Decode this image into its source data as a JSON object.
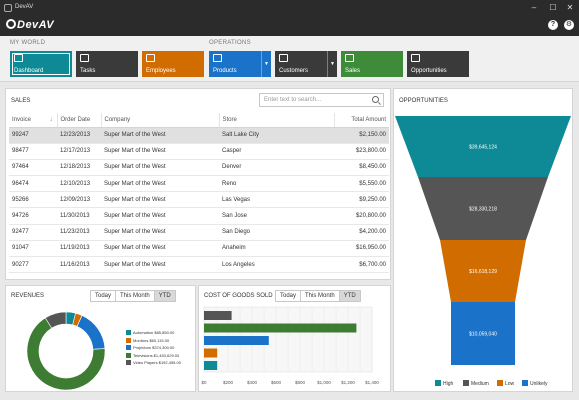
{
  "window": {
    "title": "DevAV",
    "controls": [
      "–",
      "☐",
      "✕"
    ]
  },
  "ribbon": {
    "logo": "DevAV",
    "help": "?",
    "settings": "⚙"
  },
  "nav": {
    "my_world_label": "MY WORLD",
    "operations_label": "OPERATIONS",
    "tiles": [
      {
        "label": "Dashboard",
        "color": "#0e8a96",
        "icon": "dashboard-icon"
      },
      {
        "label": "Tasks",
        "color": "#3a3a3a",
        "icon": "tasks-icon"
      },
      {
        "label": "Employees",
        "color": "#d06c00",
        "icon": "employees-icon"
      },
      {
        "label": "Products",
        "color": "#1a73c9",
        "icon": "products-icon"
      },
      {
        "label": "Customers",
        "color": "#3a3a3a",
        "icon": "customers-icon"
      },
      {
        "label": "Sales",
        "color": "#3e8c3a",
        "icon": "sales-icon"
      },
      {
        "label": "Opportunities",
        "color": "#3a3a3a",
        "icon": "opportunities-icon"
      }
    ]
  },
  "sales": {
    "title": "SALES",
    "search_placeholder": "Enter text to search...",
    "columns": [
      "Invoice",
      "Order Date",
      "Company",
      "Store",
      "Total Amount"
    ],
    "rows": [
      [
        "99247",
        "12/23/2013",
        "Super Mart of the West",
        "Salt Lake City",
        "$2,150.00"
      ],
      [
        "98477",
        "12/17/2013",
        "Super Mart of the West",
        "Casper",
        "$23,800.00"
      ],
      [
        "97464",
        "12/18/2013",
        "Super Mart of the West",
        "Denver",
        "$8,450.00"
      ],
      [
        "96474",
        "12/10/2013",
        "Super Mart of the West",
        "Reno",
        "$5,550.00"
      ],
      [
        "95266",
        "12/09/2013",
        "Super Mart of the West",
        "Las Vegas",
        "$9,250.00"
      ],
      [
        "94726",
        "11/30/2013",
        "Super Mart of the West",
        "San Jose",
        "$20,800.00"
      ],
      [
        "92477",
        "11/23/2013",
        "Super Mart of the West",
        "San Diego",
        "$4,200.00"
      ],
      [
        "91047",
        "11/19/2013",
        "Super Mart of the West",
        "Anaheim",
        "$16,950.00"
      ],
      [
        "90277",
        "11/16/2013",
        "Super Mart of the West",
        "Los Angeles",
        "$6,700.00"
      ]
    ]
  },
  "revenues": {
    "title": "REVENUES",
    "periods": [
      "Today",
      "This Month",
      "YTD"
    ],
    "legend": [
      {
        "label": "Automation $85,850.00",
        "color": "#0e8a96",
        "value": 85850
      },
      {
        "label": "Monitors $60,115.00",
        "color": "#d06c00",
        "value": 60115
      },
      {
        "label": "Projectors $374,300.00",
        "color": "#1a73c9",
        "value": 374300
      },
      {
        "label": "Televisions $1,453,629.00",
        "color": "#3e7c33",
        "value": 1453629
      },
      {
        "label": "Video Players $192,455.00",
        "color": "#555555",
        "value": 192455
      }
    ]
  },
  "cogs": {
    "title": "COST OF GOODS SOLD",
    "periods": [
      "Today",
      "This Month",
      "YTD"
    ],
    "ticks": [
      "$0",
      "$200",
      "$400",
      "$600",
      "$800",
      "$1,000",
      "$1,200",
      "$1,400"
    ],
    "bars": [
      {
        "value": 230,
        "color": "#555555"
      },
      {
        "value": 1270,
        "color": "#3e7c33"
      },
      {
        "value": 540,
        "color": "#1a73c9"
      },
      {
        "value": 110,
        "color": "#d06c00"
      },
      {
        "value": 110,
        "color": "#0e8a96"
      }
    ]
  },
  "opportunities": {
    "title": "OPPORTUNITIES",
    "stages": [
      {
        "value": "$39,645,124",
        "color": "#0e8a96"
      },
      {
        "value": "$28,330,218",
        "color": "#555555"
      },
      {
        "value": "$16,618,129",
        "color": "#d06c00"
      },
      {
        "value": "$10,059,040",
        "color": "#1a73c9"
      }
    ],
    "legend": [
      {
        "label": "High",
        "color": "#0e8a96"
      },
      {
        "label": "Medium",
        "color": "#555555"
      },
      {
        "label": "Low",
        "color": "#d06c00"
      },
      {
        "label": "Unlikely",
        "color": "#1a73c9"
      }
    ]
  }
}
